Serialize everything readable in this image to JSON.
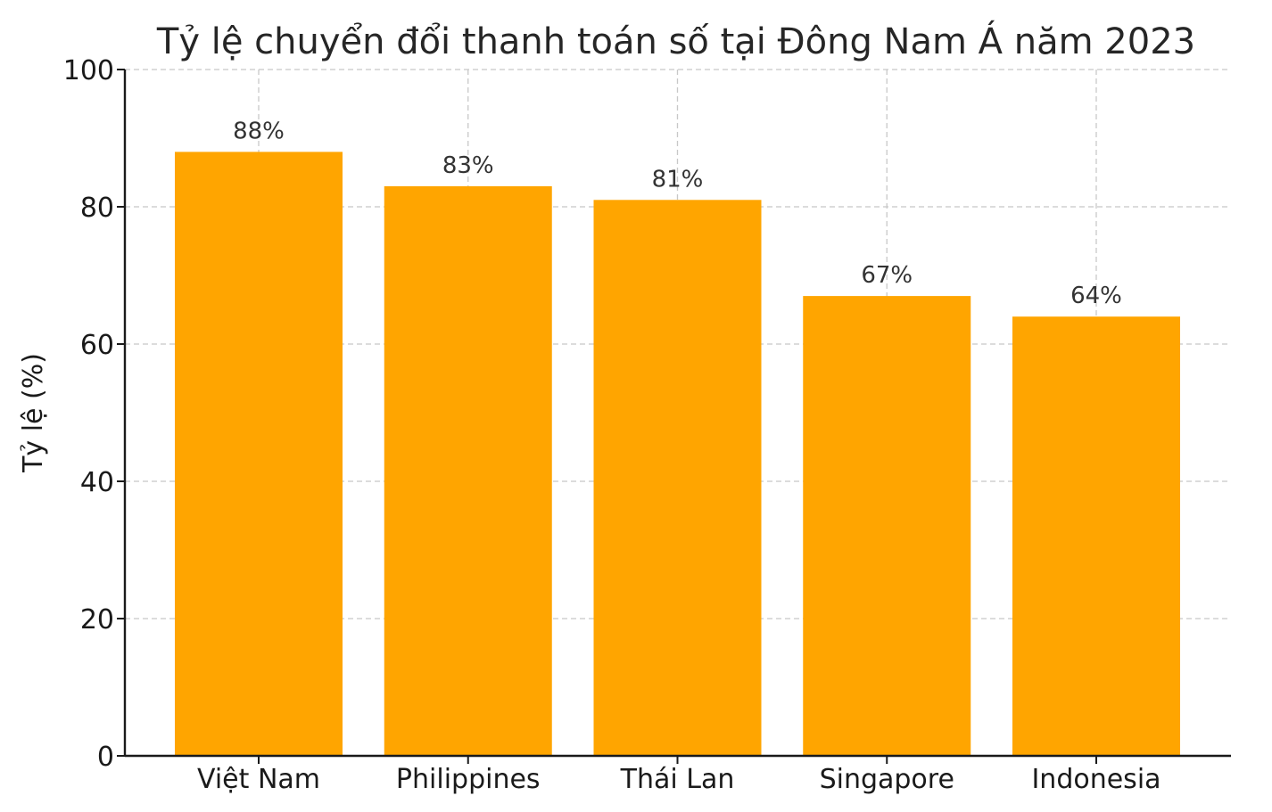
{
  "chart_data": {
    "type": "bar",
    "title": "Tỷ lệ chuyển đổi thanh toán số tại Đông Nam Á năm 2023",
    "xlabel": "",
    "ylabel": "Tỷ lệ (%)",
    "categories": [
      "Việt Nam",
      "Philippines",
      "Thái Lan",
      "Singapore",
      "Indonesia"
    ],
    "values": [
      88,
      83,
      81,
      67,
      64
    ],
    "data_labels": [
      "88%",
      "83%",
      "81%",
      "67%",
      "64%"
    ],
    "ylim": [
      0,
      100
    ],
    "yticks": [
      0,
      20,
      40,
      60,
      80,
      100
    ],
    "grid": true,
    "bar_color": "#FFA500"
  }
}
